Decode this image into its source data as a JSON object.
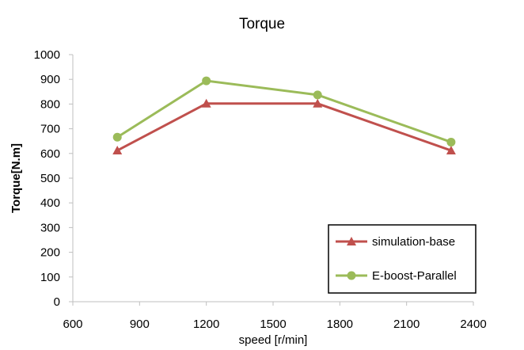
{
  "chart_data": {
    "type": "line",
    "title": "Torque",
    "xlabel": "speed [r/min]",
    "ylabel": "Torque[N.m]",
    "xlim": [
      600,
      2400
    ],
    "ylim": [
      0,
      1000
    ],
    "x_ticks": [
      600,
      900,
      1200,
      1500,
      1800,
      2100,
      2400
    ],
    "y_ticks": [
      0,
      100,
      200,
      300,
      400,
      500,
      600,
      700,
      800,
      900,
      1000
    ],
    "grid": false,
    "legend_position": "bottom-right",
    "series": [
      {
        "name": "simulation-base",
        "color": "#c0504d",
        "marker": "triangle",
        "points": [
          {
            "x": 800,
            "y": 612
          },
          {
            "x": 1200,
            "y": 802
          },
          {
            "x": 1700,
            "y": 802
          },
          {
            "x": 2300,
            "y": 612
          }
        ]
      },
      {
        "name": "E-boost-Parallel",
        "color": "#9bbb59",
        "marker": "circle",
        "points": [
          {
            "x": 800,
            "y": 666
          },
          {
            "x": 1200,
            "y": 894
          },
          {
            "x": 1700,
            "y": 837
          },
          {
            "x": 2300,
            "y": 646
          }
        ]
      }
    ]
  }
}
